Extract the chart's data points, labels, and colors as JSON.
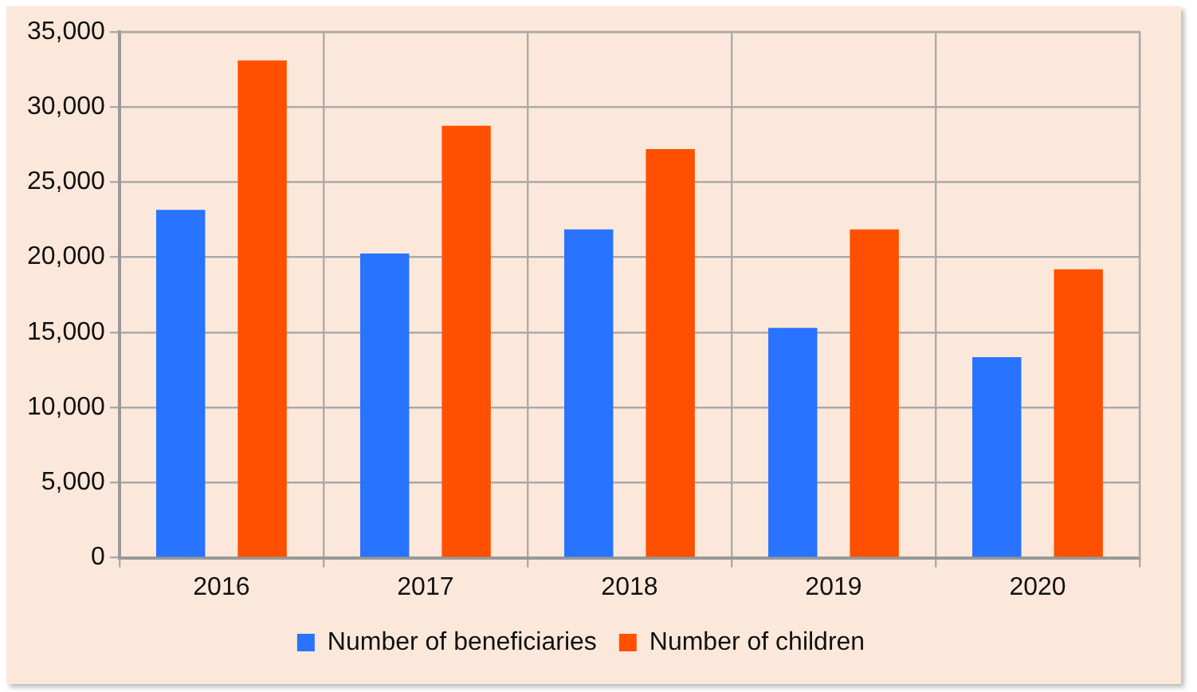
{
  "chart_data": {
    "type": "bar",
    "categories": [
      "2016",
      "2017",
      "2018",
      "2019",
      "2020"
    ],
    "series": [
      {
        "name": "Number of beneficiaries",
        "color": "#2873ff",
        "values": [
          23150,
          20250,
          21850,
          15300,
          13350
        ]
      },
      {
        "name": "Number of children",
        "color": "#ff5000",
        "values": [
          33100,
          28750,
          27200,
          21850,
          19200
        ]
      }
    ],
    "ylim": [
      0,
      35000
    ],
    "yticks": [
      {
        "value": 0,
        "label": "0"
      },
      {
        "value": 5000,
        "label": "5,000"
      },
      {
        "value": 10000,
        "label": "10,000"
      },
      {
        "value": 15000,
        "label": "15,000"
      },
      {
        "value": 20000,
        "label": "20,000"
      },
      {
        "value": 25000,
        "label": "25,000"
      },
      {
        "value": 30000,
        "label": "30,000"
      },
      {
        "value": 35000,
        "label": "35,000"
      }
    ],
    "grid": true,
    "legend": "bottom"
  }
}
